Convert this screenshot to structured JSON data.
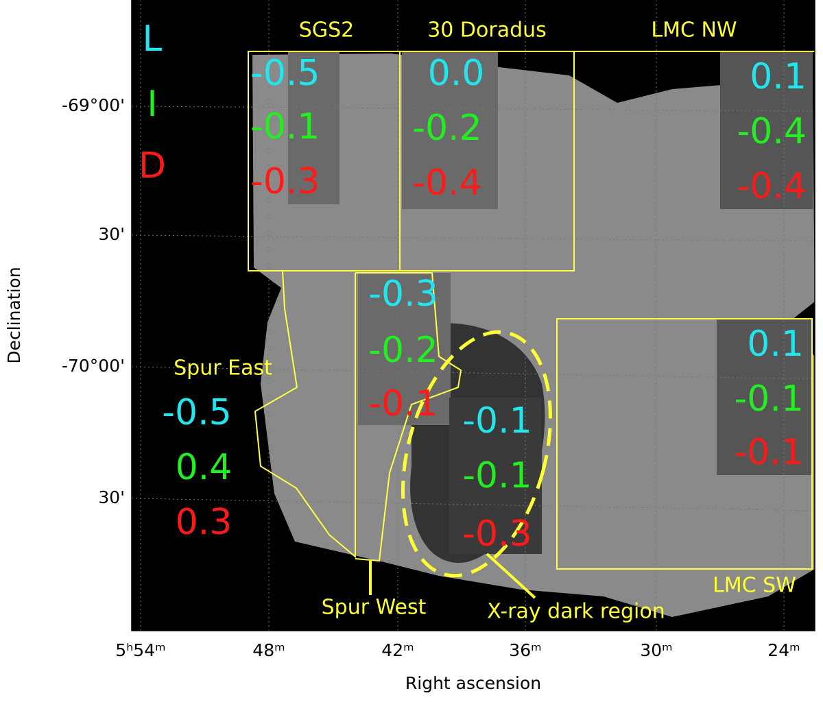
{
  "axes": {
    "x_label": "Right ascension",
    "y_label": "Declination",
    "x_ticks": [
      "5ʰ54ᵐ",
      "48ᵐ",
      "42ᵐ",
      "36ᵐ",
      "30ᵐ",
      "24ᵐ"
    ],
    "y_ticks": [
      "-69°00'",
      "30'",
      "-70°00'",
      "30'"
    ]
  },
  "legend": [
    "L",
    "I",
    "D"
  ],
  "regions": [
    {
      "name": "SGS2",
      "values": [
        "-0.5",
        "-0.1",
        "-0.3"
      ]
    },
    {
      "name": "30 Doradus",
      "values": [
        "0.0",
        "-0.2",
        "-0.4"
      ]
    },
    {
      "name": "LMC NW",
      "values": [
        "0.1",
        "-0.4",
        "-0.4"
      ]
    },
    {
      "name": "Spur East",
      "values": [
        "-0.5",
        "0.4",
        "0.3"
      ]
    },
    {
      "name": "Spur West",
      "values": [
        "-0.3",
        "-0.2",
        "-0.1"
      ]
    },
    {
      "name": "X-ray dark region",
      "values": [
        "-0.1",
        "-0.1",
        "-0.3"
      ]
    },
    {
      "name": "LMC SW",
      "values": [
        "0.1",
        "-0.1",
        "-0.1"
      ]
    }
  ]
}
